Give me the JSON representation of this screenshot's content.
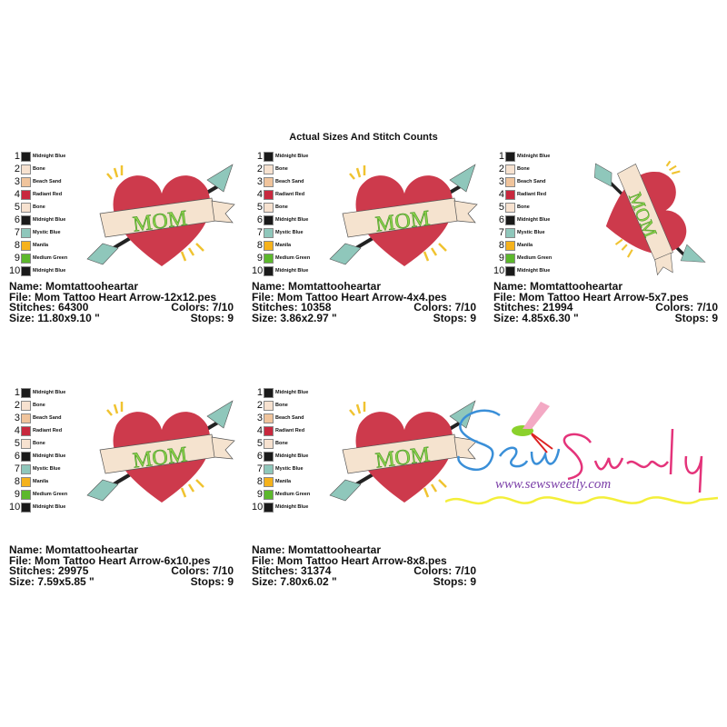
{
  "title": "Actual Sizes And Stitch Counts",
  "colors": [
    {
      "n": "1",
      "name": "Midnight Blue",
      "hex": "#1a1a1a"
    },
    {
      "n": "2",
      "name": "Bone",
      "hex": "#f7e2d0"
    },
    {
      "n": "3",
      "name": "Beach Sand",
      "hex": "#f0c49c"
    },
    {
      "n": "4",
      "name": "Radiant Red",
      "hex": "#c8283e"
    },
    {
      "n": "5",
      "name": "Bone",
      "hex": "#f7e2d0"
    },
    {
      "n": "6",
      "name": "Midnight Blue",
      "hex": "#1a1a1a"
    },
    {
      "n": "7",
      "name": "Mystic Blue",
      "hex": "#8fc7bb"
    },
    {
      "n": "8",
      "name": "Manila",
      "hex": "#f5b21c"
    },
    {
      "n": "9",
      "name": "Medium Green",
      "hex": "#5cb82c"
    },
    {
      "n": "10",
      "name": "Midnight Blue",
      "hex": "#1a1a1a"
    }
  ],
  "design_text": "MOM",
  "panels": [
    {
      "name": "Name: Momtattooheartar",
      "file": "File: Mom Tattoo Heart Arrow-12x12.pes",
      "stitches": "Stitches: 64300",
      "colors": "Colors: 7/10",
      "size": "Size: 11.80x9.10 \"",
      "stops": "Stops: 9",
      "rotated": false
    },
    {
      "name": "Name: Momtattooheartar",
      "file": "File: Mom Tattoo Heart Arrow-4x4.pes",
      "stitches": "Stitches: 10358",
      "colors": "Colors: 7/10",
      "size": "Size: 3.86x2.97 \"",
      "stops": "Stops: 9",
      "rotated": false
    },
    {
      "name": "Name: Momtattooheartar",
      "file": "File: Mom Tattoo Heart Arrow-5x7.pes",
      "stitches": "Stitches: 21994",
      "colors": "Colors: 7/10",
      "size": "Size: 4.85x6.30 \"",
      "stops": "Stops: 9",
      "rotated": true
    },
    {
      "name": "Name: Momtattooheartar",
      "file": "File: Mom Tattoo Heart Arrow-6x10.pes",
      "stitches": "Stitches: 29975",
      "colors": "Colors: 7/10",
      "size": "Size: 7.59x5.85 \"",
      "stops": "Stops: 9",
      "rotated": false
    },
    {
      "name": "Name: Momtattooheartar",
      "file": "File: Mom Tattoo Heart Arrow-8x8.pes",
      "stitches": "Stitches: 31374",
      "colors": "Colors: 7/10",
      "size": "Size: 7.80x6.02 \"",
      "stops": "Stops: 9",
      "rotated": false
    }
  ],
  "logo": {
    "brand": "Sew Sweetly",
    "url": "www.sewsweetly.com"
  }
}
